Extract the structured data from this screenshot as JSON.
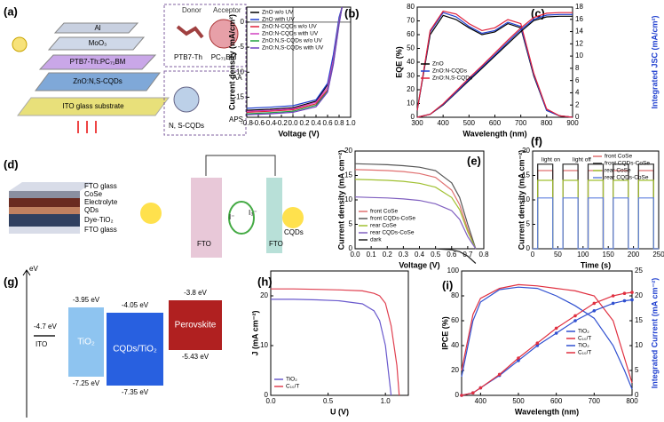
{
  "panel_a": {
    "label": "(a)",
    "layers": [
      "Al",
      "MoO₃",
      "PTB7-Th:PC₇₁BM",
      "ZnO:N,S-CQDs",
      "ITO glass substrate"
    ],
    "donor": "Donor",
    "acceptor": "Acceptor",
    "donor_name": "PTB7-Th",
    "acceptor_name": "PC₇₁BM",
    "cqd": "N, S-CQDs",
    "aa": "AA",
    "aps": "APS"
  },
  "panel_d": {
    "label": "(d)",
    "layers": [
      "FTO glass",
      "CoSe",
      "Electrolyte",
      "QDs",
      "Dye-TiO₂",
      "FTO glass"
    ],
    "left_electrode": "FTO",
    "right_electrode": "FTO",
    "iodide": "I⁻",
    "triiodide": "I₃⁻",
    "cqds": "CQDs"
  },
  "panel_g": {
    "label": "(g)",
    "unit": "eV",
    "ito": {
      "level": "-4.7 eV",
      "name": "ITO"
    },
    "boxes": [
      {
        "top": "-3.95 eV",
        "name": "TiO₂",
        "bottom": "-7.25 eV"
      },
      {
        "top": "-4.05 eV",
        "name": "CQDs/TiO₂",
        "bottom": "-7.35 eV"
      },
      {
        "top": "-3.8 eV",
        "name": "Perovskite",
        "bottom": "-5.43 eV"
      }
    ]
  },
  "chart_data": [
    {
      "type": "line",
      "panel_label": "(b)",
      "xlabel": "Voltage (V)",
      "ylabel": "Current density (mA/cm²)",
      "xlim": [
        -0.8,
        1.0
      ],
      "ylim": [
        -19,
        3
      ],
      "xticks": [
        -0.8,
        -0.6,
        -0.4,
        -0.2,
        {
          "value": 0,
          "label": "0.0"
        },
        0.2,
        0.4,
        0.6,
        0.8,
        {
          "value": 1,
          "label": "1.0"
        }
      ],
      "yticks": [
        -15,
        -10,
        -5,
        0
      ],
      "legend": "upper left",
      "x": [
        -0.8,
        -0.4,
        0,
        0.4,
        0.6,
        0.7,
        0.8,
        0.85
      ],
      "series": [
        {
          "name": "ZnO w/o UV",
          "color": "#000000",
          "values": [
            -17.6,
            -17.4,
            -17.1,
            -15.8,
            -12.5,
            -7,
            0.5,
            3
          ]
        },
        {
          "name": "ZnO with UV",
          "color": "#1f3fcf",
          "values": [
            -17.2,
            -17,
            -16.7,
            -15.5,
            -12.2,
            -6.5,
            1,
            3
          ]
        },
        {
          "name": "ZnO:N-CQDs w/o UV",
          "color": "#e0203a",
          "values": [
            -18,
            -17.8,
            -17.5,
            -16.3,
            -13.5,
            -8,
            0,
            3
          ]
        },
        {
          "name": "ZnO:N-CQDs with UV",
          "color": "#d040c0",
          "values": [
            -17.8,
            -17.6,
            -17.3,
            -16,
            -13,
            -7.5,
            0.3,
            3
          ]
        },
        {
          "name": "ZnO:N,S-CQDs w/o UV",
          "color": "#20a040",
          "values": [
            -18.3,
            -18.1,
            -17.8,
            -16.6,
            -13.8,
            -8.3,
            -0.2,
            3
          ]
        },
        {
          "name": "ZnO:N,S-CQDs with UV",
          "color": "#7040c0",
          "values": [
            -18.5,
            -18.3,
            -18,
            -16.9,
            -14,
            -8.5,
            -0.5,
            3
          ]
        }
      ]
    },
    {
      "type": "line",
      "panel_label": "(c)",
      "xlabel": "Wavelength (nm)",
      "ylabel": "EQE (%)",
      "y2label": "Integrated JSC (mA/cm²)",
      "xlim": [
        300,
        900
      ],
      "ylim": [
        0,
        80
      ],
      "y2lim": [
        0,
        18
      ],
      "xticks": [
        300,
        400,
        500,
        600,
        700,
        800,
        900
      ],
      "yticks": [
        0,
        10,
        20,
        30,
        40,
        50,
        60,
        70,
        80
      ],
      "y2ticks": [
        0,
        2,
        4,
        6,
        8,
        10,
        12,
        14,
        16,
        18
      ],
      "legend": "center left",
      "x": [
        300,
        350,
        400,
        450,
        500,
        550,
        600,
        650,
        700,
        750,
        800,
        850,
        900
      ],
      "series": [
        {
          "name": "ZnO",
          "color": "#000000",
          "values": [
            5,
            60,
            74,
            71,
            65,
            60,
            62,
            68,
            65,
            30,
            5,
            1,
            0
          ]
        },
        {
          "name": "ZnO:N-CQDs",
          "color": "#1f3fcf",
          "values": [
            5,
            62,
            76,
            73,
            66,
            61,
            63,
            69,
            66,
            31,
            5,
            1,
            0
          ]
        },
        {
          "name": "ZnO:N,S-CQDs",
          "color": "#e0203a",
          "values": [
            5,
            63,
            77,
            75,
            68,
            63,
            65,
            71,
            68,
            32,
            6,
            1,
            0
          ]
        },
        {
          "color": "#000000",
          "axis": "y2",
          "values": [
            0,
            0.5,
            2,
            4,
            6,
            8,
            10,
            12,
            14,
            15.8,
            16.4,
            16.5,
            16.5
          ]
        },
        {
          "color": "#1f3fcf",
          "axis": "y2",
          "values": [
            0,
            0.5,
            2.1,
            4.1,
            6.2,
            8.2,
            10.2,
            12.3,
            14.3,
            16,
            16.7,
            16.8,
            16.8
          ]
        },
        {
          "color": "#e0203a",
          "axis": "y2",
          "values": [
            0,
            0.5,
            2.2,
            4.3,
            6.4,
            8.4,
            10.5,
            12.6,
            14.6,
            16.3,
            17,
            17.1,
            17.1
          ]
        }
      ]
    },
    {
      "type": "line",
      "panel_label": "(e)",
      "xlabel": "Voltage (V)",
      "ylabel": "Current density (mA cm⁻²)",
      "xlim": [
        0,
        0.8
      ],
      "ylim": [
        0,
        20
      ],
      "xticks": [
        {
          "value": 0,
          "label": "0.0"
        },
        0.1,
        0.2,
        0.3,
        0.4,
        0.5,
        0.6,
        0.7,
        0.8
      ],
      "yticks": [
        0,
        5,
        10,
        15,
        20
      ],
      "legend": "lower left",
      "x": [
        0,
        0.1,
        0.2,
        0.3,
        0.4,
        0.5,
        0.6,
        0.65,
        0.7,
        0.75
      ],
      "series": [
        {
          "name": "front CoSe",
          "color": "#e07070",
          "values": [
            16.2,
            16.1,
            16,
            15.8,
            15.4,
            14.6,
            12,
            9,
            4,
            0
          ]
        },
        {
          "name": "front CQDs-CoSe",
          "color": "#555555",
          "values": [
            17.4,
            17.3,
            17.2,
            17,
            16.7,
            16,
            13.5,
            10.5,
            5,
            0
          ]
        },
        {
          "name": "rear CoSe",
          "color": "#a0c030",
          "values": [
            14.2,
            14.1,
            14,
            13.8,
            13.4,
            12.6,
            10.5,
            8,
            3.5,
            0
          ]
        },
        {
          "name": "rear CQDs-CoSe",
          "color": "#8060c0",
          "values": [
            10.6,
            10.5,
            10.4,
            10.2,
            9.9,
            9.2,
            7.8,
            6,
            2.5,
            0
          ]
        },
        {
          "name": "dark",
          "color": "#222222",
          "values": [
            0,
            0,
            0,
            0,
            0,
            0,
            -0.2,
            -0.6,
            -1.5,
            -3
          ]
        }
      ]
    },
    {
      "type": "line",
      "panel_label": "(f)",
      "xlabel": "Time (s)",
      "ylabel": "Current density (mA cm⁻²)",
      "xlim": [
        0,
        250
      ],
      "ylim": [
        0,
        20
      ],
      "xticks": [
        0,
        50,
        100,
        150,
        200,
        250
      ],
      "yticks": [
        0,
        5,
        10,
        15,
        20
      ],
      "legend": "upper right",
      "annotations": [
        "light on",
        "light off"
      ],
      "x": [
        0,
        10,
        10,
        40,
        40,
        60,
        60,
        90,
        90,
        110,
        110,
        140,
        140,
        160,
        160,
        190,
        190,
        210,
        210,
        240,
        240,
        250
      ],
      "series": [
        {
          "name": "front CoSe",
          "color": "#e07070",
          "values": [
            0,
            0,
            16,
            16,
            0,
            0,
            16,
            16,
            0,
            0,
            16,
            16,
            0,
            0,
            16,
            16,
            0,
            0,
            16,
            16,
            0,
            0
          ]
        },
        {
          "name": "front CQDs-CoSe",
          "color": "#222222",
          "values": [
            0,
            0,
            17.3,
            17.3,
            0,
            0,
            17.3,
            17.3,
            0,
            0,
            17.3,
            17.3,
            0,
            0,
            17.3,
            17.3,
            0,
            0,
            17.3,
            17.3,
            0,
            0
          ]
        },
        {
          "name": "rear CoSe",
          "color": "#a0c030",
          "values": [
            0,
            0,
            14,
            14,
            0,
            0,
            14,
            14,
            0,
            0,
            14,
            14,
            0,
            0,
            14,
            14,
            0,
            0,
            14,
            14,
            0,
            0
          ]
        },
        {
          "name": "rear CQDs-CoSe",
          "color": "#6080e0",
          "values": [
            0,
            0,
            10.4,
            10.4,
            0,
            0,
            10.4,
            10.4,
            0,
            0,
            10.4,
            10.4,
            0,
            0,
            10.4,
            10.4,
            0,
            0,
            10.4,
            10.4,
            0,
            0
          ]
        }
      ]
    },
    {
      "type": "line",
      "panel_label": "(h)",
      "xlabel": "U (V)",
      "ylabel": "J (mA cm⁻²)",
      "xlim": [
        0,
        1.2
      ],
      "ylim": [
        0,
        25
      ],
      "xticks": [
        {
          "value": 0,
          "label": "0.0"
        },
        0.5,
        {
          "value": 1,
          "label": "1.0"
        }
      ],
      "yticks": [
        0,
        10,
        20
      ],
      "legend": "lower left",
      "x": [
        0,
        0.2,
        0.4,
        0.6,
        0.8,
        0.9,
        0.95,
        1.0,
        1.05,
        1.1,
        1.12
      ],
      "series": [
        {
          "name": "TiO₂",
          "color": "#6a5acd",
          "values": [
            19.3,
            19.3,
            19.2,
            19,
            18.4,
            17,
            15,
            10,
            0,
            null,
            null
          ]
        },
        {
          "name": "C₁₀/T",
          "color": "#e04050",
          "values": [
            21.4,
            21.4,
            21.3,
            21.2,
            21,
            20.5,
            20,
            18.5,
            14,
            6,
            0
          ]
        }
      ]
    },
    {
      "type": "line",
      "panel_label": "(i)",
      "xlabel": "Wavelength (nm)",
      "ylabel": "IPCE (%)",
      "y2label": "Integrated Current (mA cm⁻²)",
      "xlim": [
        350,
        800
      ],
      "ylim": [
        0,
        100
      ],
      "y2lim": [
        0,
        25
      ],
      "xticks": [
        400,
        500,
        600,
        700,
        800
      ],
      "yticks": [
        0,
        20,
        40,
        60,
        80,
        100
      ],
      "y2ticks": [
        0,
        5,
        10,
        15,
        20,
        25
      ],
      "legend": "center right",
      "x": [
        350,
        380,
        400,
        450,
        500,
        550,
        600,
        650,
        700,
        750,
        780,
        800
      ],
      "series": [
        {
          "name": "TiO₂",
          "color": "#3050d0",
          "values": [
            15,
            60,
            75,
            85,
            87,
            86,
            80,
            72,
            62,
            40,
            20,
            5
          ]
        },
        {
          "name": "C₁₀/T",
          "color": "#e03040",
          "values": [
            20,
            65,
            78,
            86,
            89,
            88,
            86,
            84,
            80,
            60,
            30,
            10
          ]
        },
        {
          "name": "TiO₂",
          "color": "#3050d0",
          "axis": "y2",
          "marker": true,
          "values": [
            0,
            0.5,
            1.5,
            4,
            7,
            10,
            12.5,
            15,
            17,
            18.5,
            19,
            19.2
          ]
        },
        {
          "name": "C₁₀/T",
          "color": "#e03040",
          "axis": "y2",
          "marker": true,
          "values": [
            0,
            0.5,
            1.5,
            4.2,
            7.5,
            10.5,
            13.5,
            16,
            18.5,
            20,
            20.5,
            20.7
          ]
        }
      ]
    }
  ]
}
